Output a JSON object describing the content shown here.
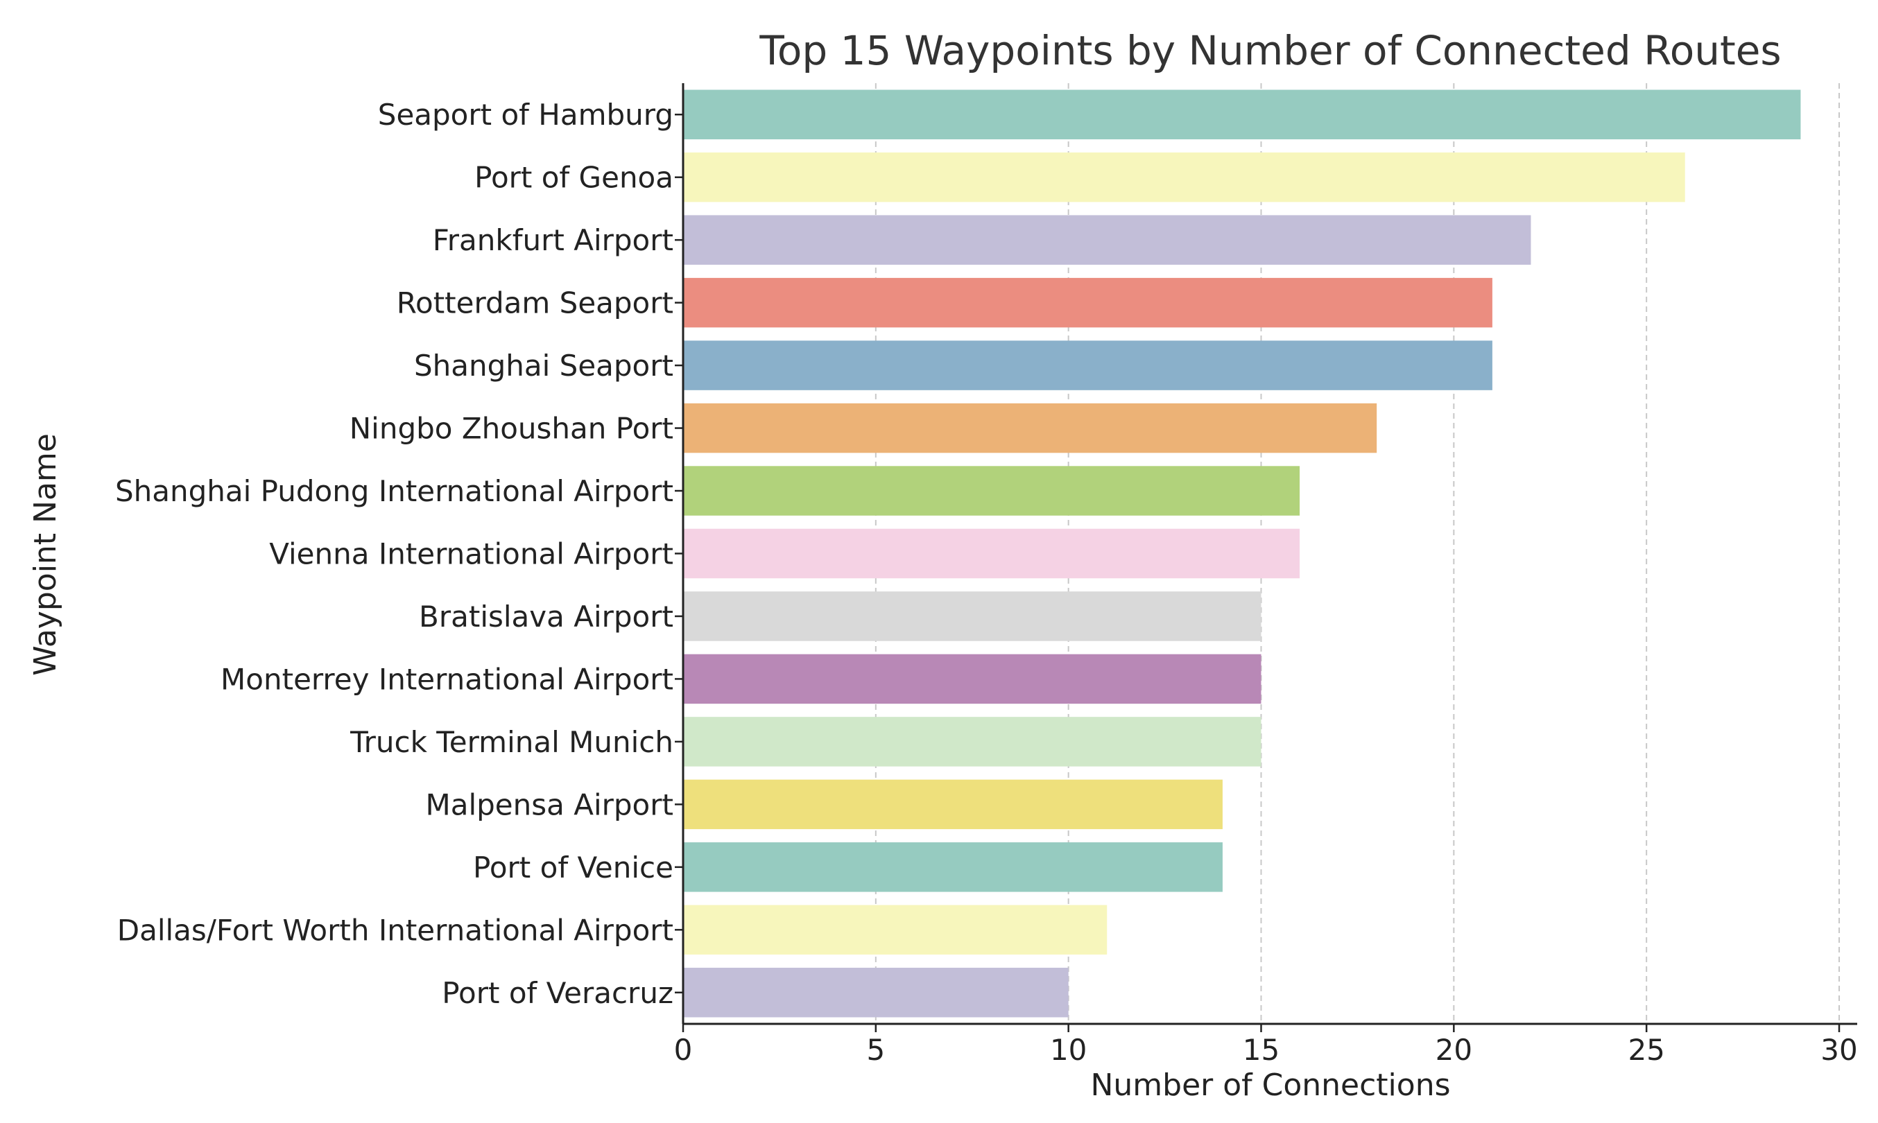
{
  "chart_data": {
    "type": "bar",
    "orientation": "horizontal",
    "title": "Top 15 Waypoints by Number of Connected Routes",
    "xlabel": "Number of Connections",
    "ylabel": "Waypoint Name",
    "xlim": [
      0,
      30.5
    ],
    "xticks": [
      0,
      5,
      10,
      15,
      20,
      25,
      30
    ],
    "grid": "vertical dashed",
    "categories": [
      "Seaport of Hamburg",
      "Port of Genoa",
      "Frankfurt Airport",
      "Rotterdam Seaport",
      "Shanghai Seaport",
      "Ningbo Zhoushan Port",
      "Shanghai Pudong International Airport",
      "Vienna International Airport",
      "Bratislava Airport",
      "Monterrey International Airport",
      "Truck Terminal Munich",
      "Malpensa Airport",
      "Port of Venice",
      "Dallas/Fort Worth International Airport",
      "Port of Veracruz"
    ],
    "values": [
      29,
      26,
      22,
      21,
      21,
      18,
      16,
      16,
      15,
      15,
      15,
      14,
      14,
      11,
      10
    ],
    "colors": [
      "#96CBC0",
      "#F7F6BC",
      "#C2BED8",
      "#EB8D80",
      "#8AB0CA",
      "#ECB276",
      "#B1D27B",
      "#F5D2E4",
      "#D9D9D9",
      "#B888B6",
      "#D0E8C9",
      "#EEE07C",
      "#96CBC0",
      "#F7F6BC",
      "#C2BED8"
    ]
  }
}
